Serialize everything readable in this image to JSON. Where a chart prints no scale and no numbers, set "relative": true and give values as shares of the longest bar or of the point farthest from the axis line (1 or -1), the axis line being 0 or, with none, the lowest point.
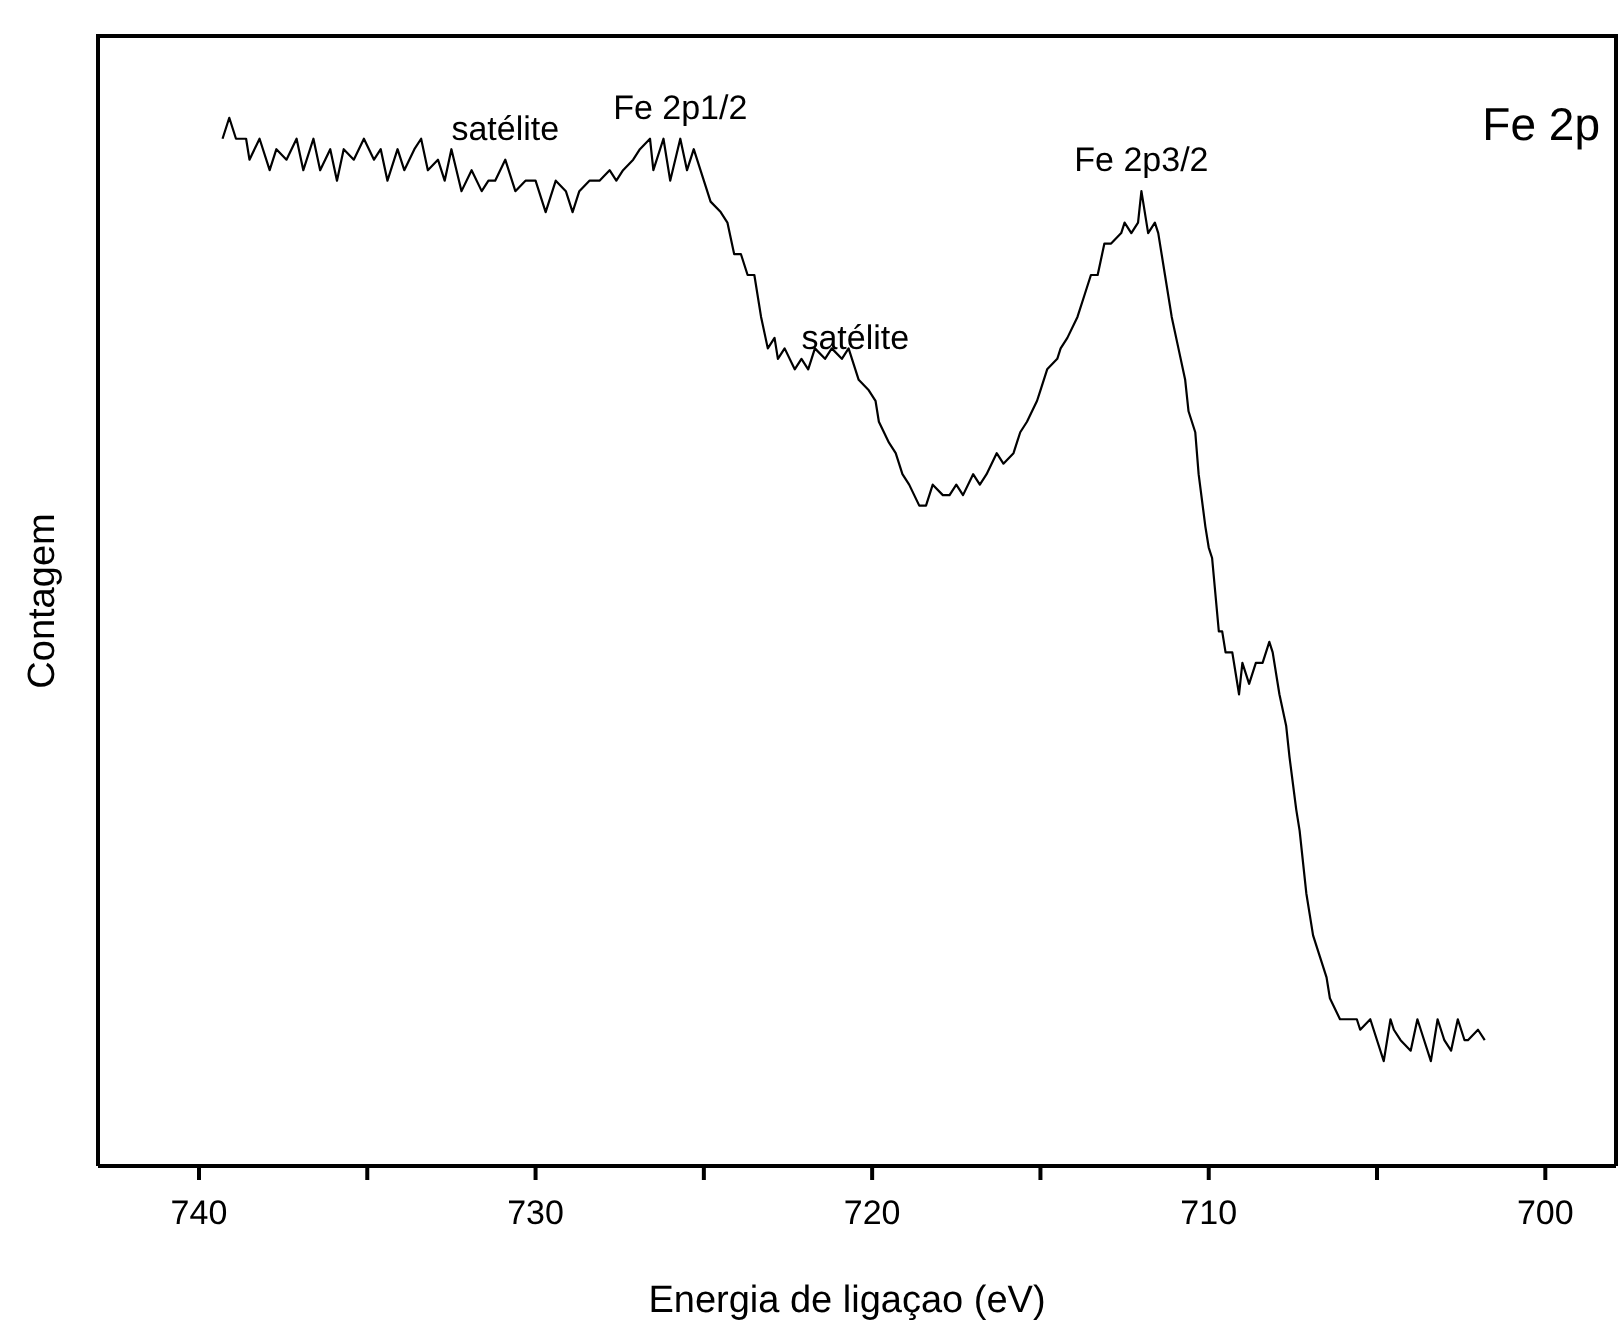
{
  "chart_data": {
    "type": "line",
    "title": "Fe 2p",
    "xlabel": "Energia de ligaçao (eV)",
    "ylabel": "Contagem",
    "relative": true,
    "xlim": [
      743,
      697.9
    ],
    "xticks": [
      740,
      {
        "value": 735,
        "label": null
      },
      730,
      {
        "value": 725,
        "label": null
      },
      720,
      {
        "value": 715,
        "label": null
      },
      710,
      {
        "value": 705,
        "label": null
      },
      700
    ],
    "tick_labels": "x",
    "grid": false,
    "marker": "none",
    "line_style": "solid",
    "annotations": [
      {
        "text": "satélite",
        "x": 730.9,
        "y": 0.96
      },
      {
        "text": "Fe 2p1/2",
        "x": 725.7,
        "y": 0.98
      },
      {
        "text": "satélite",
        "x": 720.5,
        "y": 0.76
      },
      {
        "text": "Fe 2p3/2",
        "x": 712.0,
        "y": 0.93
      }
    ],
    "series": [
      {
        "color": "#000000",
        "x": [
          739.3,
          739.1,
          738.9,
          738.6,
          738.5,
          738.2,
          737.9,
          737.7,
          737.4,
          737.1,
          736.9,
          736.6,
          736.4,
          736.1,
          735.9,
          735.7,
          735.4,
          735.1,
          734.8,
          734.6,
          734.4,
          734.1,
          733.9,
          733.6,
          733.4,
          733.2,
          732.9,
          732.7,
          732.5,
          732.2,
          731.9,
          731.6,
          731.4,
          731.2,
          730.9,
          730.6,
          730.3,
          730.0,
          729.7,
          729.4,
          729.1,
          728.9,
          728.7,
          728.4,
          728.1,
          727.8,
          727.6,
          727.4,
          727.1,
          726.9,
          726.6,
          726.5,
          726.2,
          726.0,
          725.7,
          725.5,
          725.3,
          725.0,
          724.8,
          724.5,
          724.3,
          724.1,
          723.9,
          723.7,
          723.5,
          723.3,
          723.1,
          722.9,
          722.8,
          722.6,
          722.3,
          722.1,
          721.9,
          721.7,
          721.4,
          721.2,
          720.9,
          720.7,
          720.5,
          720.4,
          720.1,
          719.9,
          719.8,
          719.5,
          719.3,
          719.1,
          718.9,
          718.6,
          718.4,
          718.2,
          717.9,
          717.7,
          717.5,
          717.3,
          717.0,
          716.8,
          716.6,
          716.3,
          716.1,
          715.8,
          715.6,
          715.4,
          715.1,
          715.0,
          714.8,
          714.5,
          714.4,
          714.2,
          713.9,
          713.7,
          713.5,
          713.3,
          713.1,
          712.9,
          712.6,
          712.5,
          712.3,
          712.1,
          712.0,
          711.8,
          711.6,
          711.5,
          711.3,
          711.1,
          710.9,
          710.7,
          710.6,
          710.4,
          710.3,
          710.1,
          710.0,
          709.9,
          709.7,
          709.6,
          709.5,
          709.3,
          709.1,
          709.0,
          708.8,
          708.6,
          708.4,
          708.2,
          708.1,
          707.9,
          707.7,
          707.6,
          707.4,
          707.3,
          707.1,
          707.0,
          706.9,
          706.7,
          706.5,
          706.4,
          706.1,
          705.9,
          705.6,
          705.5,
          705.2,
          705.0,
          704.8,
          704.6,
          704.5,
          704.3,
          704.0,
          703.8,
          703.6,
          703.4,
          703.2,
          703.0,
          702.8,
          702.6,
          702.4,
          702.3,
          702.0,
          701.8
        ],
        "values": [
          0.98,
          1.0,
          0.98,
          0.98,
          0.96,
          0.98,
          0.95,
          0.97,
          0.96,
          0.98,
          0.95,
          0.98,
          0.95,
          0.97,
          0.94,
          0.97,
          0.96,
          0.98,
          0.96,
          0.97,
          0.94,
          0.97,
          0.95,
          0.97,
          0.98,
          0.95,
          0.96,
          0.94,
          0.97,
          0.93,
          0.95,
          0.93,
          0.94,
          0.94,
          0.96,
          0.93,
          0.94,
          0.94,
          0.91,
          0.94,
          0.93,
          0.91,
          0.93,
          0.94,
          0.94,
          0.95,
          0.94,
          0.95,
          0.96,
          0.97,
          0.98,
          0.95,
          0.98,
          0.94,
          0.98,
          0.95,
          0.97,
          0.94,
          0.92,
          0.91,
          0.9,
          0.87,
          0.87,
          0.85,
          0.85,
          0.81,
          0.78,
          0.79,
          0.77,
          0.78,
          0.76,
          0.77,
          0.76,
          0.78,
          0.77,
          0.78,
          0.77,
          0.78,
          0.76,
          0.75,
          0.74,
          0.73,
          0.71,
          0.69,
          0.68,
          0.66,
          0.65,
          0.63,
          0.63,
          0.65,
          0.64,
          0.64,
          0.65,
          0.64,
          0.66,
          0.65,
          0.66,
          0.68,
          0.67,
          0.68,
          0.7,
          0.71,
          0.73,
          0.74,
          0.76,
          0.77,
          0.78,
          0.79,
          0.81,
          0.83,
          0.85,
          0.85,
          0.88,
          0.88,
          0.89,
          0.9,
          0.89,
          0.9,
          0.93,
          0.89,
          0.9,
          0.89,
          0.85,
          0.81,
          0.78,
          0.75,
          0.72,
          0.7,
          0.66,
          0.61,
          0.59,
          0.58,
          0.51,
          0.51,
          0.49,
          0.49,
          0.45,
          0.48,
          0.46,
          0.48,
          0.48,
          0.5,
          0.49,
          0.45,
          0.42,
          0.39,
          0.34,
          0.32,
          0.26,
          0.24,
          0.22,
          0.2,
          0.18,
          0.16,
          0.14,
          0.14,
          0.14,
          0.13,
          0.14,
          0.12,
          0.1,
          0.14,
          0.13,
          0.12,
          0.11,
          0.14,
          0.12,
          0.1,
          0.14,
          0.12,
          0.11,
          0.14,
          0.12,
          0.12,
          0.13,
          0.12
        ]
      }
    ]
  }
}
